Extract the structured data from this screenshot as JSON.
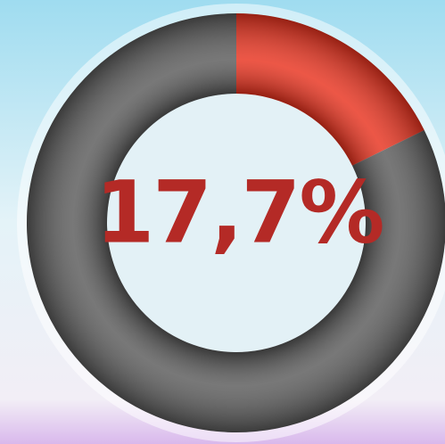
{
  "chart_data": {
    "type": "donut",
    "values": [
      17.7,
      82.3
    ],
    "value_labels": [
      "17,7%",
      null
    ],
    "colors": [
      "#e8321e",
      "#5a5a5a"
    ]
  }
}
